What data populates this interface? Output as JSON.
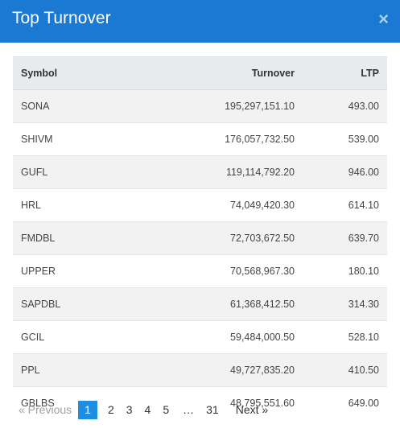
{
  "dialog": {
    "title": "Top Turnover",
    "close_symbol": "×"
  },
  "table": {
    "headers": {
      "symbol": "Symbol",
      "turnover": "Turnover",
      "ltp": "LTP"
    },
    "rows": [
      {
        "symbol": "SONA",
        "turnover": "195,297,151.10",
        "ltp": "493.00"
      },
      {
        "symbol": "SHIVM",
        "turnover": "176,057,732.50",
        "ltp": "539.00"
      },
      {
        "symbol": "GUFL",
        "turnover": "119,114,792.20",
        "ltp": "946.00"
      },
      {
        "symbol": "HRL",
        "turnover": "74,049,420.30",
        "ltp": "614.10"
      },
      {
        "symbol": "FMDBL",
        "turnover": "72,703,672.50",
        "ltp": "639.70"
      },
      {
        "symbol": "UPPER",
        "turnover": "70,568,967.30",
        "ltp": "180.10"
      },
      {
        "symbol": "SAPDBL",
        "turnover": "61,368,412.50",
        "ltp": "314.30"
      },
      {
        "symbol": "GCIL",
        "turnover": "59,484,000.50",
        "ltp": "528.10"
      },
      {
        "symbol": "PPL",
        "turnover": "49,727,835.20",
        "ltp": "410.50"
      },
      {
        "symbol": "GBLBS",
        "turnover": "48,795,551.60",
        "ltp": "649.00"
      }
    ]
  },
  "pagination": {
    "previous": "« Previous",
    "pages": [
      "1",
      "2",
      "3",
      "4",
      "5"
    ],
    "active": "1",
    "ellipsis": "…",
    "last": "31",
    "next": "Next »"
  },
  "colors": {
    "header_bg": "#1979d3",
    "active_page_bg": "#1f8ee0",
    "table_header_bg": "#e8ebee",
    "striped_row_bg": "#f2f2f2"
  }
}
